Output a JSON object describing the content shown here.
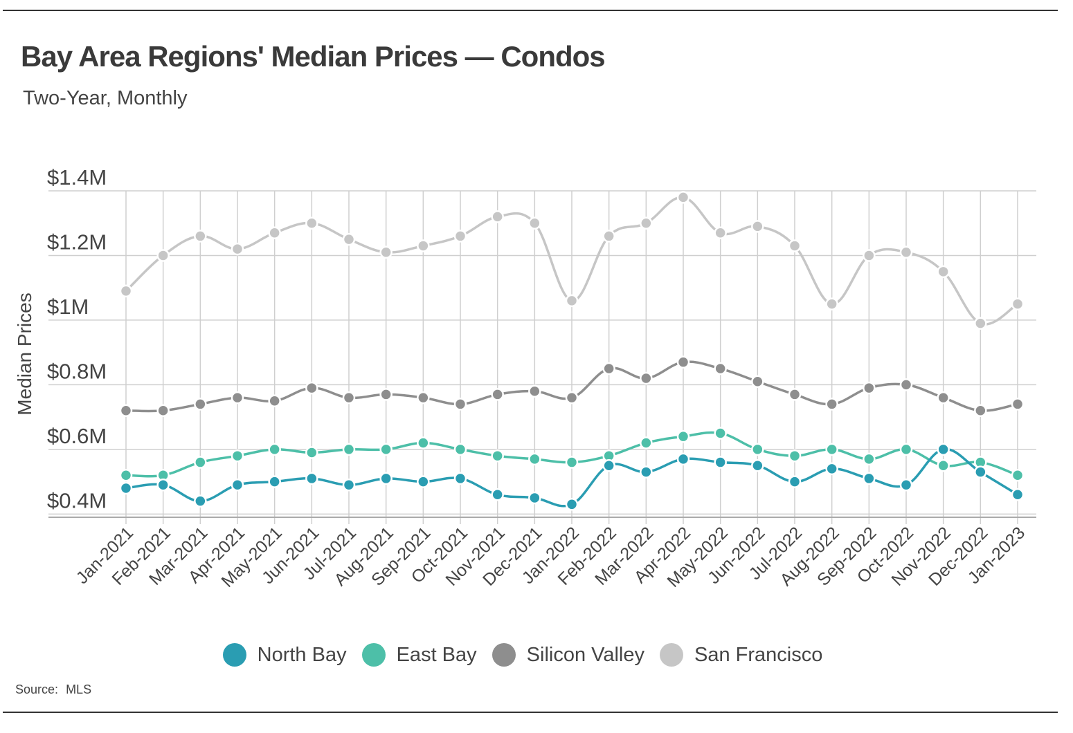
{
  "header": {
    "title": "Bay Area Regions' Median Prices — Condos",
    "subtitle": "Two-Year, Monthly"
  },
  "source": {
    "label": "Source:",
    "value": "MLS"
  },
  "chart_data": {
    "type": "line",
    "title": "Bay Area Regions' Median Prices — Condos",
    "subtitle": "Two-Year, Monthly",
    "xlabel": "",
    "ylabel": "Median Prices",
    "ylim": [
      0.39,
      1.4
    ],
    "yticks": [
      0.4,
      0.6,
      0.8,
      1.0,
      1.2,
      1.4
    ],
    "ytick_labels": [
      "$0.4M",
      "$0.6M",
      "$0.8M",
      "$1M",
      "$1.2M",
      "$1.4M"
    ],
    "grid": true,
    "legend_position": "bottom",
    "categories": [
      "Jan-2021",
      "Feb-2021",
      "Mar-2021",
      "Apr-2021",
      "May-2021",
      "Jun-2021",
      "Jul-2021",
      "Aug-2021",
      "Sep-2021",
      "Oct-2021",
      "Nov-2021",
      "Dec-2021",
      "Jan-2022",
      "Feb-2022",
      "Mar-2022",
      "Apr-2022",
      "May-2022",
      "Jun-2022",
      "Jul-2022",
      "Aug-2022",
      "Sep-2022",
      "Oct-2022",
      "Nov-2022",
      "Dec-2022",
      "Jan-2023"
    ],
    "series": [
      {
        "name": "San Francisco",
        "color": "#c6c6c6",
        "values": [
          1.09,
          1.2,
          1.26,
          1.22,
          1.27,
          1.3,
          1.25,
          1.21,
          1.23,
          1.26,
          1.32,
          1.3,
          1.06,
          1.26,
          1.3,
          1.38,
          1.27,
          1.29,
          1.23,
          1.05,
          1.2,
          1.21,
          1.15,
          0.99,
          1.05
        ]
      },
      {
        "name": "Silicon Valley",
        "color": "#8e8e8e",
        "values": [
          0.72,
          0.72,
          0.74,
          0.76,
          0.75,
          0.79,
          0.76,
          0.77,
          0.76,
          0.74,
          0.77,
          0.78,
          0.76,
          0.85,
          0.82,
          0.87,
          0.85,
          0.81,
          0.77,
          0.74,
          0.79,
          0.8,
          0.76,
          0.72,
          0.74
        ]
      },
      {
        "name": "East Bay",
        "color": "#4dbfa8",
        "values": [
          0.52,
          0.52,
          0.56,
          0.58,
          0.6,
          0.59,
          0.6,
          0.6,
          0.62,
          0.6,
          0.58,
          0.57,
          0.56,
          0.58,
          0.62,
          0.64,
          0.65,
          0.6,
          0.58,
          0.6,
          0.57,
          0.6,
          0.55,
          0.56,
          0.52
        ]
      },
      {
        "name": "North Bay",
        "color": "#2a9db2",
        "values": [
          0.48,
          0.49,
          0.44,
          0.49,
          0.5,
          0.51,
          0.49,
          0.51,
          0.5,
          0.51,
          0.46,
          0.45,
          0.43,
          0.55,
          0.53,
          0.57,
          0.56,
          0.55,
          0.5,
          0.54,
          0.51,
          0.49,
          0.6,
          0.53,
          0.46
        ]
      }
    ],
    "legend": [
      {
        "name": "North Bay",
        "color": "#2a9db2"
      },
      {
        "name": "East Bay",
        "color": "#4dbfa8"
      },
      {
        "name": "Silicon Valley",
        "color": "#8e8e8e"
      },
      {
        "name": "San Francisco",
        "color": "#c6c6c6"
      }
    ]
  }
}
